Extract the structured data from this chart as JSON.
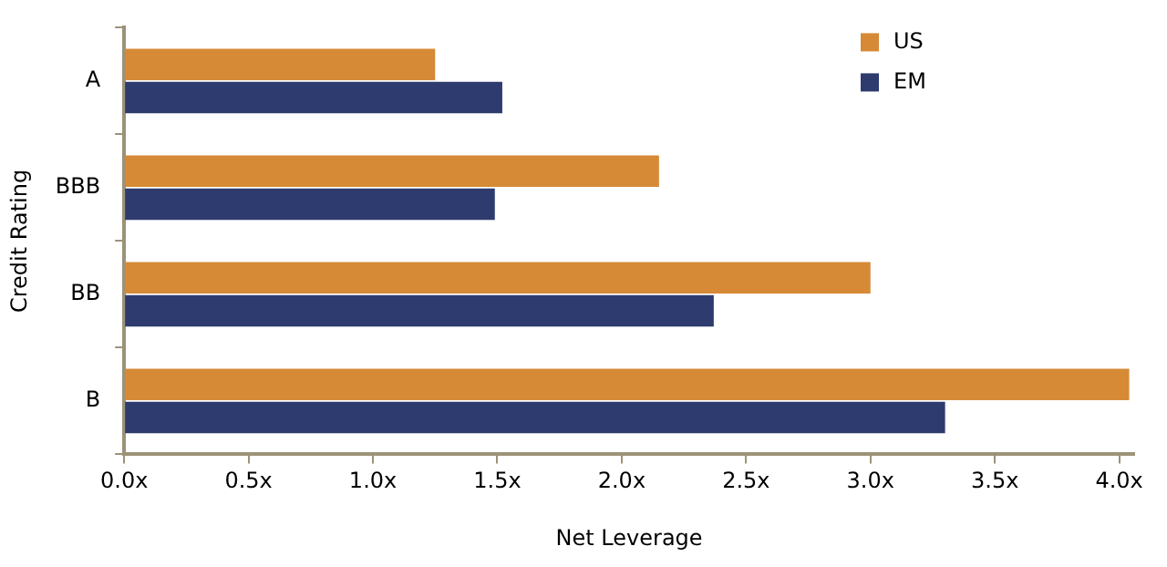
{
  "chart_data": {
    "type": "bar",
    "orientation": "horizontal",
    "xlabel": "Net Leverage",
    "ylabel": "Credit Rating",
    "categories": [
      "A",
      "BBB",
      "BB",
      "B"
    ],
    "series": [
      {
        "name": "US",
        "color": "#d68a36",
        "values": [
          1.25,
          2.15,
          3.0,
          4.04
        ]
      },
      {
        "name": "EM",
        "color": "#2e3b6e",
        "values": [
          1.52,
          1.49,
          2.37,
          3.3
        ]
      }
    ],
    "xlim": [
      0,
      4.06
    ],
    "xticks": [
      {
        "value": 0,
        "label": "0.0x"
      },
      {
        "value": 0.5,
        "label": "0.5x"
      },
      {
        "value": 1,
        "label": "1.0x"
      },
      {
        "value": 1.5,
        "label": "1.5x"
      },
      {
        "value": 2,
        "label": "2.0x"
      },
      {
        "value": 2.5,
        "label": "2.5x"
      },
      {
        "value": 3,
        "label": "3.0x"
      },
      {
        "value": 3.5,
        "label": "3.5x"
      },
      {
        "value": 4,
        "label": "4.0x"
      }
    ],
    "grid": false,
    "legend": "top right"
  }
}
